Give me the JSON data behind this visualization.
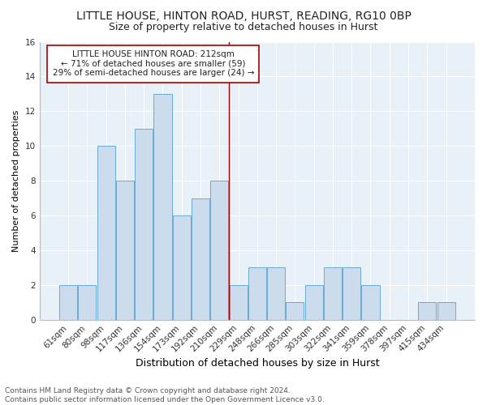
{
  "title": "LITTLE HOUSE, HINTON ROAD, HURST, READING, RG10 0BP",
  "subtitle": "Size of property relative to detached houses in Hurst",
  "xlabel": "Distribution of detached houses by size in Hurst",
  "ylabel": "Number of detached properties",
  "categories": [
    "61sqm",
    "80sqm",
    "98sqm",
    "117sqm",
    "136sqm",
    "154sqm",
    "173sqm",
    "192sqm",
    "210sqm",
    "229sqm",
    "248sqm",
    "266sqm",
    "285sqm",
    "303sqm",
    "322sqm",
    "341sqm",
    "359sqm",
    "378sqm",
    "397sqm",
    "415sqm",
    "434sqm"
  ],
  "values": [
    2,
    2,
    10,
    8,
    11,
    13,
    6,
    7,
    8,
    2,
    3,
    3,
    1,
    2,
    3,
    3,
    2,
    0,
    0,
    1,
    1
  ],
  "bar_color": "#ccdcec",
  "bar_edge_color": "#6aaad4",
  "reference_line_x": 8.5,
  "reference_line_color": "#aa0000",
  "annotation_text": "LITTLE HOUSE HINTON ROAD: 212sqm\n← 71% of detached houses are smaller (59)\n29% of semi-detached houses are larger (24) →",
  "annotation_box_facecolor": "#ffffff",
  "annotation_box_edgecolor": "#aa0000",
  "ylim": [
    0,
    16
  ],
  "yticks": [
    0,
    2,
    4,
    6,
    8,
    10,
    12,
    14,
    16
  ],
  "footer_line1": "Contains HM Land Registry data © Crown copyright and database right 2024.",
  "footer_line2": "Contains public sector information licensed under the Open Government Licence v3.0.",
  "plot_bg_color": "#e8f0f8",
  "fig_bg_color": "#ffffff",
  "title_fontsize": 10,
  "subtitle_fontsize": 9,
  "xlabel_fontsize": 9,
  "ylabel_fontsize": 8,
  "tick_fontsize": 7.5,
  "annotation_fontsize": 7.5,
  "footer_fontsize": 6.5,
  "grid_color": "#ffffff",
  "spine_color": "#bbbbbb"
}
